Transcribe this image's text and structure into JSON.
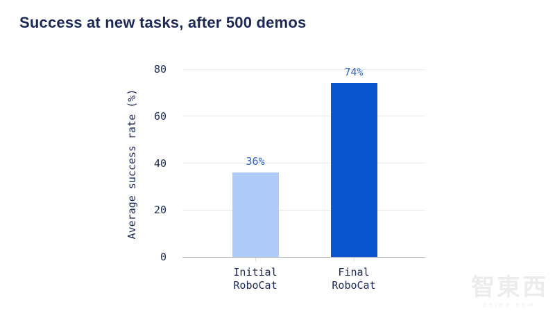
{
  "title": "Success at new tasks, after 500 demos",
  "chart_data": {
    "type": "bar",
    "categories": [
      [
        "Initial",
        "RoboCat"
      ],
      [
        "Final",
        "RoboCat"
      ]
    ],
    "values": [
      36,
      74
    ],
    "value_labels": [
      "36%",
      "74%"
    ],
    "title": "Success at new tasks, after 500 demos",
    "xlabel": "",
    "ylabel": "Average success rate (%)",
    "yticks": [
      0,
      20,
      40,
      60,
      80
    ],
    "ylim": [
      0,
      80
    ],
    "grid": true,
    "legend": false,
    "bar_colors": [
      "#aecbfa",
      "#0b54d0"
    ],
    "value_label_color": "#2e63d1",
    "title_color": "#1c2857",
    "axis_text_color": "#1c2857"
  },
  "watermark": {
    "logo_text": "智東西",
    "domain": "zhidx.com"
  }
}
